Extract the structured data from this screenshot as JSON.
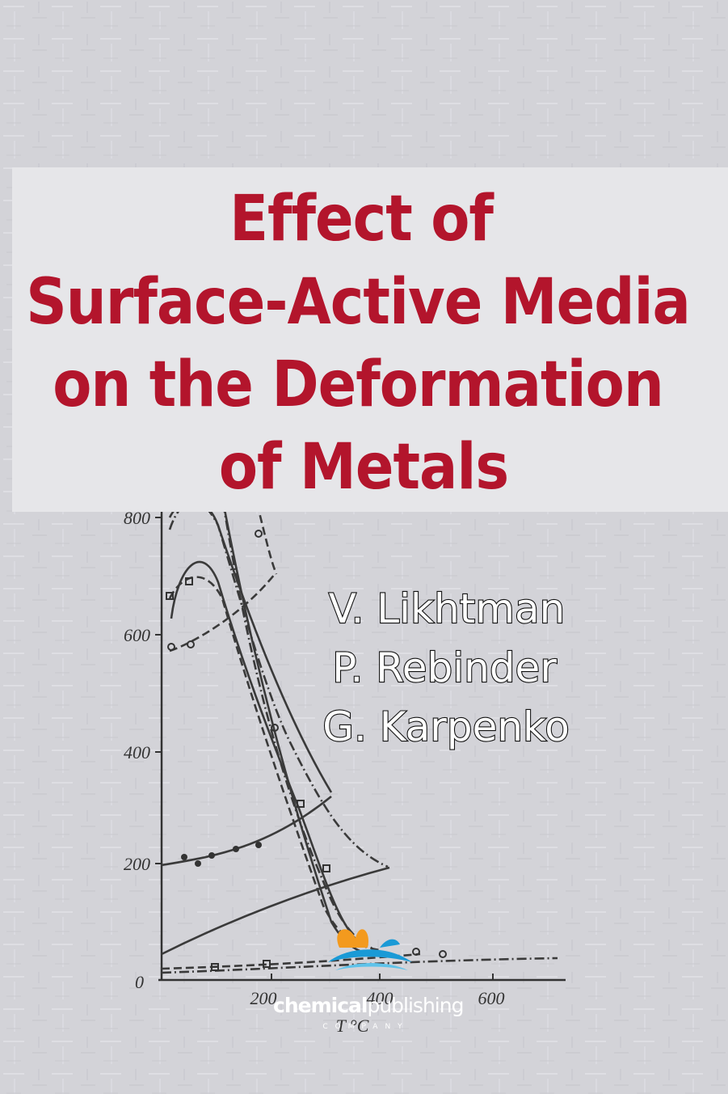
{
  "cover": {
    "title_lines": [
      "Effect of",
      "Surface-Active Media",
      "on the Deformation",
      "of Metals"
    ],
    "authors": [
      "V. Likhtman",
      "P. Rebinder",
      "G. Karpenko"
    ],
    "illustration": {
      "y_tick_labels": [
        "800",
        "600",
        "400",
        "200",
        "0"
      ],
      "x_tick_labels": [
        "200",
        "400",
        "600"
      ],
      "x_label": "T °C"
    },
    "publisher": {
      "name_bold": "chemical",
      "name_light": "publishing",
      "company": "COMPANY"
    }
  }
}
